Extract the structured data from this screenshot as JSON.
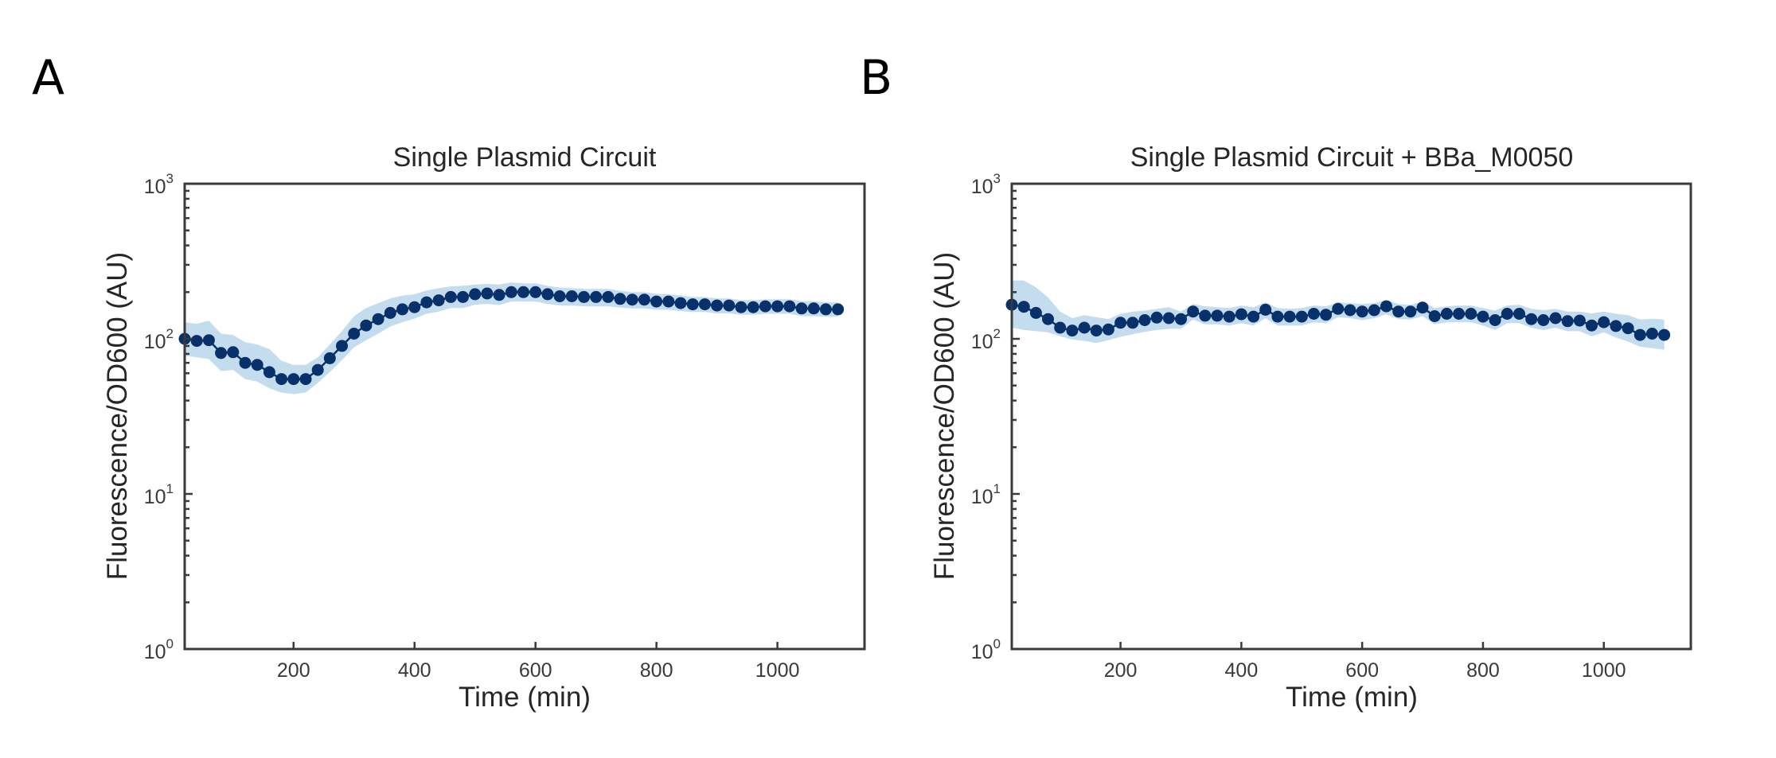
{
  "figure": {
    "panels": [
      "A",
      "B"
    ]
  },
  "chart_data": [
    {
      "type": "line",
      "panel_label": "A",
      "title": "Single Plasmid Circuit",
      "xlabel": "Time (min)",
      "ylabel": "Fluorescence/OD600 (AU)",
      "xscale": "linear",
      "yscale": "log",
      "xlim": [
        20,
        1144
      ],
      "ylim": [
        1,
        1000
      ],
      "xticks": [
        200,
        400,
        600,
        800,
        1000
      ],
      "xtick_labels": [
        "200",
        "400",
        "600",
        "800",
        "1000"
      ],
      "yticks": [
        1,
        10,
        100,
        1000
      ],
      "ytick_labels": [
        {
          "base": "10",
          "exp": "0"
        },
        {
          "base": "10",
          "exp": "1"
        },
        {
          "base": "10",
          "exp": "2"
        },
        {
          "base": "10",
          "exp": "3"
        }
      ],
      "grid": false,
      "legend": "none",
      "colors": {
        "marker": "#08306b",
        "band": "#c3dcee"
      },
      "series": [
        {
          "name": "mean",
          "x": [
            20,
            40,
            60,
            80,
            100,
            120,
            140,
            160,
            180,
            200,
            220,
            240,
            260,
            280,
            300,
            320,
            340,
            360,
            380,
            400,
            420,
            440,
            460,
            480,
            500,
            520,
            540,
            560,
            580,
            600,
            620,
            640,
            660,
            680,
            700,
            720,
            740,
            760,
            780,
            800,
            820,
            840,
            860,
            880,
            900,
            920,
            940,
            960,
            980,
            1000,
            1020,
            1040,
            1060,
            1080,
            1100
          ],
          "y": [
            100,
            97,
            98,
            81,
            82,
            70,
            68,
            61,
            55,
            55,
            55,
            63,
            75,
            90,
            108,
            122,
            134,
            147,
            155,
            160,
            172,
            177,
            186,
            186,
            194,
            196,
            192,
            200,
            200,
            200,
            194,
            188,
            188,
            186,
            186,
            186,
            181,
            179,
            179,
            174,
            174,
            170,
            167,
            167,
            164,
            164,
            160,
            160,
            162,
            162,
            162,
            157,
            157,
            155,
            155
          ],
          "upper": [
            128,
            125,
            131,
            108,
            106,
            95,
            92,
            86,
            72,
            68,
            68,
            76,
            92,
            112,
            140,
            158,
            170,
            182,
            190,
            194,
            205,
            212,
            218,
            220,
            224,
            226,
            224,
            231,
            228,
            228,
            220,
            214,
            212,
            210,
            210,
            210,
            204,
            200,
            200,
            195,
            194,
            190,
            186,
            186,
            182,
            182,
            178,
            178,
            180,
            180,
            180,
            175,
            175,
            172,
            172
          ],
          "lower": [
            78,
            76,
            74,
            62,
            63,
            55,
            53,
            48,
            45,
            44,
            45,
            52,
            61,
            73,
            88,
            98,
            108,
            120,
            128,
            135,
            145,
            150,
            158,
            158,
            166,
            168,
            165,
            174,
            174,
            174,
            168,
            164,
            164,
            162,
            162,
            162,
            159,
            157,
            157,
            154,
            154,
            151,
            149,
            149,
            146,
            146,
            143,
            143,
            145,
            145,
            145,
            140,
            140,
            139,
            139
          ]
        }
      ]
    },
    {
      "type": "line",
      "panel_label": "B",
      "title": "Single Plasmid Circuit + BBa_M0050",
      "xlabel": "Time (min)",
      "ylabel": "Fluorescence/OD600 (AU)",
      "xscale": "linear",
      "yscale": "log",
      "xlim": [
        20,
        1144
      ],
      "ylim": [
        1,
        1000
      ],
      "xticks": [
        200,
        400,
        600,
        800,
        1000
      ],
      "xtick_labels": [
        "200",
        "400",
        "600",
        "800",
        "1000"
      ],
      "yticks": [
        1,
        10,
        100,
        1000
      ],
      "ytick_labels": [
        {
          "base": "10",
          "exp": "0"
        },
        {
          "base": "10",
          "exp": "1"
        },
        {
          "base": "10",
          "exp": "2"
        },
        {
          "base": "10",
          "exp": "3"
        }
      ],
      "grid": false,
      "legend": "none",
      "colors": {
        "marker": "#08306b",
        "band": "#c3dcee"
      },
      "series": [
        {
          "name": "mean",
          "x": [
            20,
            40,
            60,
            80,
            100,
            120,
            140,
            160,
            180,
            200,
            220,
            240,
            260,
            280,
            300,
            320,
            340,
            360,
            380,
            400,
            420,
            440,
            460,
            480,
            500,
            520,
            540,
            560,
            580,
            600,
            620,
            640,
            660,
            680,
            700,
            720,
            740,
            760,
            780,
            800,
            820,
            840,
            860,
            880,
            900,
            920,
            940,
            960,
            980,
            1000,
            1020,
            1040,
            1060,
            1080,
            1100
          ],
          "y": [
            166,
            161,
            147,
            134,
            118,
            113,
            118,
            113,
            115,
            127,
            127,
            132,
            137,
            136,
            134,
            150,
            141,
            141,
            139,
            144,
            139,
            154,
            139,
            139,
            139,
            145,
            143,
            156,
            153,
            150,
            153,
            162,
            150,
            150,
            159,
            140,
            145,
            145,
            145,
            139,
            132,
            145,
            145,
            134,
            132,
            136,
            130,
            131,
            122,
            128,
            121,
            117,
            106,
            108,
            106
          ],
          "upper": [
            238,
            238,
            215,
            185,
            150,
            136,
            142,
            138,
            134,
            145,
            150,
            152,
            156,
            160,
            150,
            168,
            162,
            160,
            158,
            164,
            160,
            172,
            158,
            156,
            158,
            164,
            162,
            172,
            170,
            168,
            170,
            178,
            168,
            166,
            174,
            158,
            162,
            164,
            164,
            158,
            152,
            164,
            166,
            156,
            153,
            156,
            150,
            150,
            146,
            150,
            145,
            142,
            133,
            135,
            133
          ],
          "lower": [
            118,
            114,
            112,
            110,
            104,
            99,
            97,
            94,
            98,
            103,
            107,
            111,
            114,
            116,
            116,
            133,
            124,
            124,
            122,
            126,
            122,
            136,
            122,
            122,
            122,
            128,
            126,
            138,
            136,
            132,
            136,
            144,
            134,
            133,
            140,
            124,
            128,
            128,
            128,
            122,
            114,
            126,
            126,
            118,
            114,
            118,
            112,
            112,
            104,
            110,
            102,
            96,
            89,
            87,
            85
          ]
        }
      ]
    }
  ]
}
